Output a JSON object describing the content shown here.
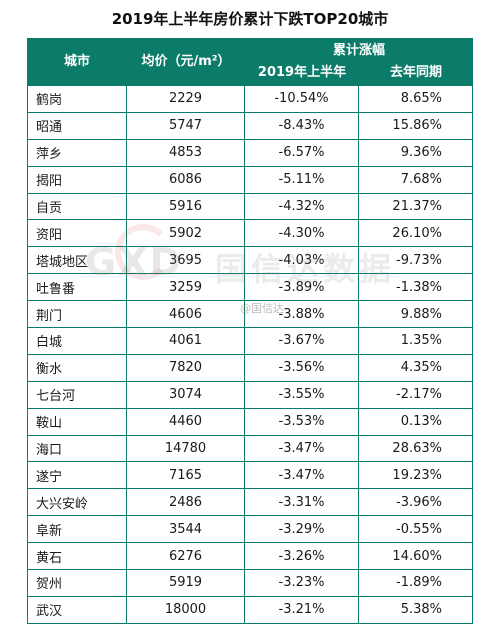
{
  "title": "2019年上半年房价累计下跌TOP20城市",
  "header": {
    "city": "城市",
    "price": "均价（元/m²）",
    "change": "累计涨幅",
    "h1_2019": "2019年上半年",
    "same_period_last_year": "去年同期"
  },
  "watermark": {
    "logo": "GXD",
    "brand": "国信达数据",
    "handle": "@国信达"
  },
  "rows": [
    {
      "city": "鹤岗",
      "price": "2229",
      "h1": "-10.54%",
      "yoy": "8.65%"
    },
    {
      "city": "昭通",
      "price": "5747",
      "h1": "-8.43%",
      "yoy": "15.86%"
    },
    {
      "city": "萍乡",
      "price": "4853",
      "h1": "-6.57%",
      "yoy": "9.36%"
    },
    {
      "city": "揭阳",
      "price": "6086",
      "h1": "-5.11%",
      "yoy": "7.68%"
    },
    {
      "city": "自贡",
      "price": "5916",
      "h1": "-4.32%",
      "yoy": "21.37%"
    },
    {
      "city": "资阳",
      "price": "5902",
      "h1": "-4.30%",
      "yoy": "26.10%"
    },
    {
      "city": "塔城地区",
      "price": "3695",
      "h1": "-4.03%",
      "yoy": "-9.73%"
    },
    {
      "city": "吐鲁番",
      "price": "3259",
      "h1": "-3.89%",
      "yoy": "-1.38%"
    },
    {
      "city": "荆门",
      "price": "4606",
      "h1": "-3.88%",
      "yoy": "9.88%"
    },
    {
      "city": "白城",
      "price": "4061",
      "h1": "-3.67%",
      "yoy": "1.35%"
    },
    {
      "city": "衡水",
      "price": "7820",
      "h1": "-3.56%",
      "yoy": "4.35%"
    },
    {
      "city": "七台河",
      "price": "3074",
      "h1": "-3.55%",
      "yoy": "-2.17%"
    },
    {
      "city": "鞍山",
      "price": "4460",
      "h1": "-3.53%",
      "yoy": "0.13%"
    },
    {
      "city": "海口",
      "price": "14780",
      "h1": "-3.47%",
      "yoy": "28.63%"
    },
    {
      "city": "遂宁",
      "price": "7165",
      "h1": "-3.47%",
      "yoy": "19.23%"
    },
    {
      "city": "大兴安岭",
      "price": "2486",
      "h1": "-3.31%",
      "yoy": "-3.96%"
    },
    {
      "city": "阜新",
      "price": "3544",
      "h1": "-3.29%",
      "yoy": "-0.55%"
    },
    {
      "city": "黄石",
      "price": "6276",
      "h1": "-3.26%",
      "yoy": "14.60%"
    },
    {
      "city": "贺州",
      "price": "5919",
      "h1": "-3.23%",
      "yoy": "-1.89%"
    },
    {
      "city": "武汉",
      "price": "18000",
      "h1": "-3.21%",
      "yoy": "5.38%"
    }
  ]
}
